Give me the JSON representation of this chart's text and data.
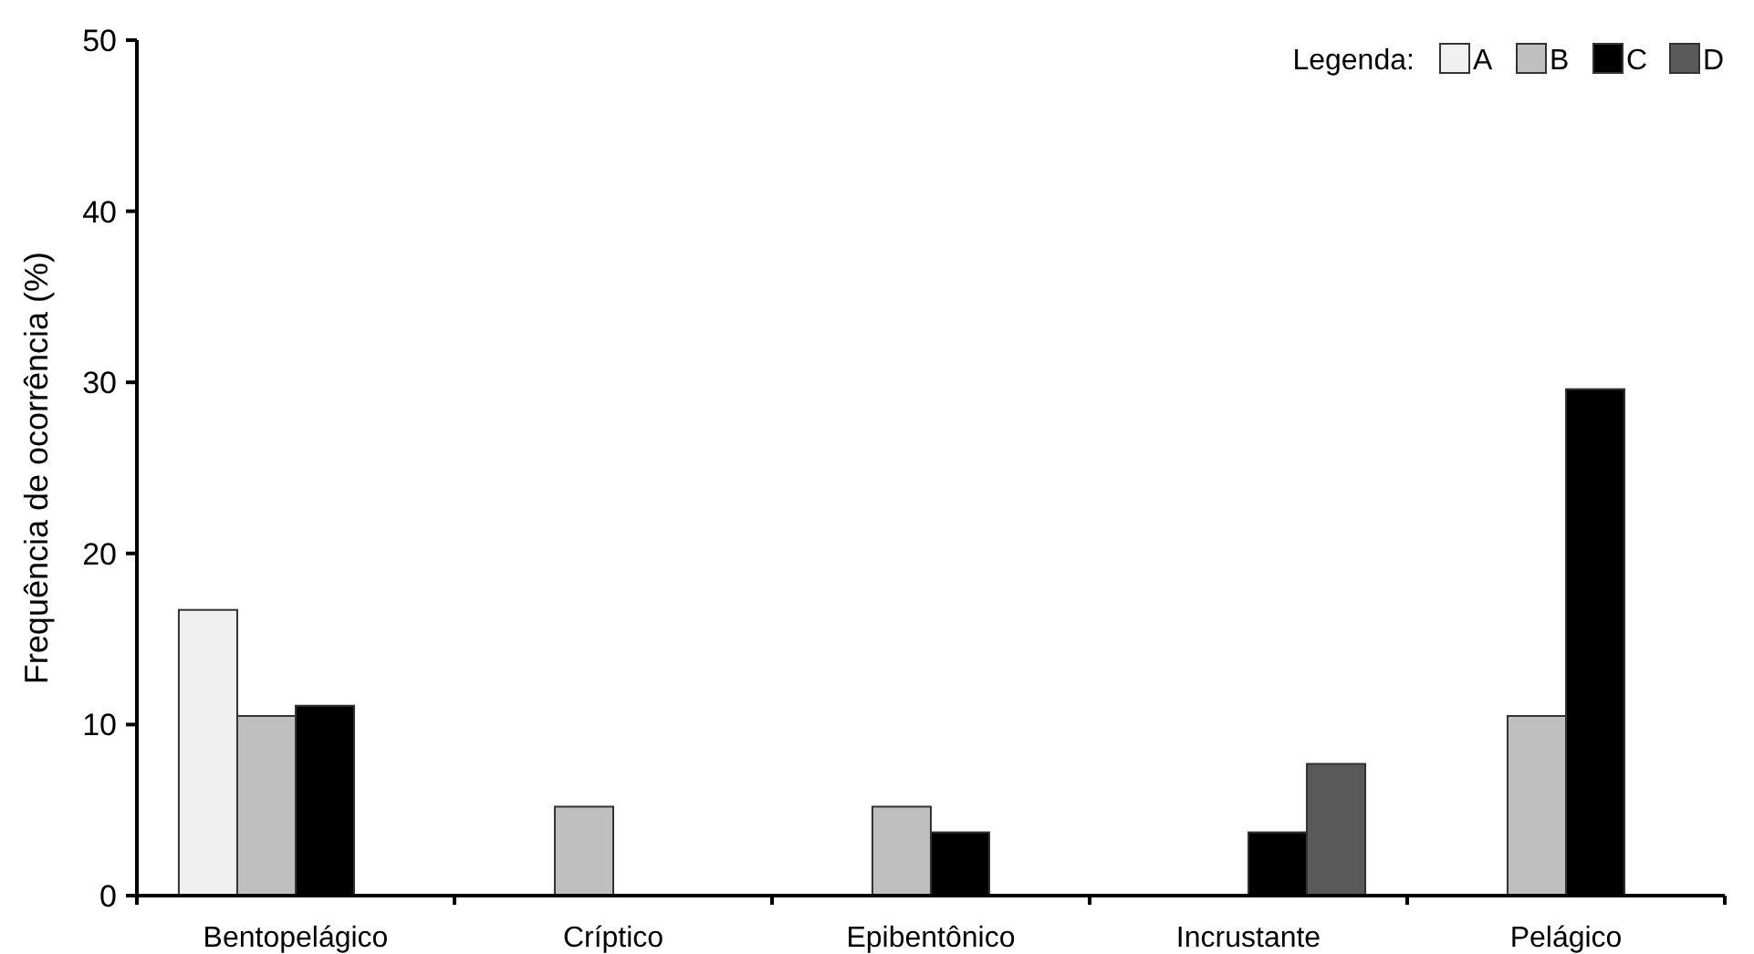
{
  "chart_data": {
    "type": "bar",
    "ylabel": "Frequência de ocorrência (%)",
    "legend_title": "Legenda:",
    "legend": "top right",
    "categories": [
      "Bentopelágico",
      "Críptico",
      "Epibentônico",
      "Incrustante",
      "Pelágico"
    ],
    "series": [
      {
        "name": "A",
        "color": "#f0f0f0",
        "values": [
          16.7,
          null,
          null,
          null,
          null
        ]
      },
      {
        "name": "B",
        "color": "#bfbfbf",
        "values": [
          10.5,
          5.2,
          5.2,
          null,
          10.5
        ]
      },
      {
        "name": "C",
        "color": "#000000",
        "values": [
          11.1,
          null,
          3.7,
          3.7,
          29.6
        ]
      },
      {
        "name": "D",
        "color": "#595959",
        "values": [
          null,
          null,
          null,
          7.7,
          null
        ]
      }
    ],
    "ylim": [
      0,
      50
    ],
    "yticks": [
      0,
      10,
      20,
      30,
      40,
      50
    ],
    "grid": false
  }
}
